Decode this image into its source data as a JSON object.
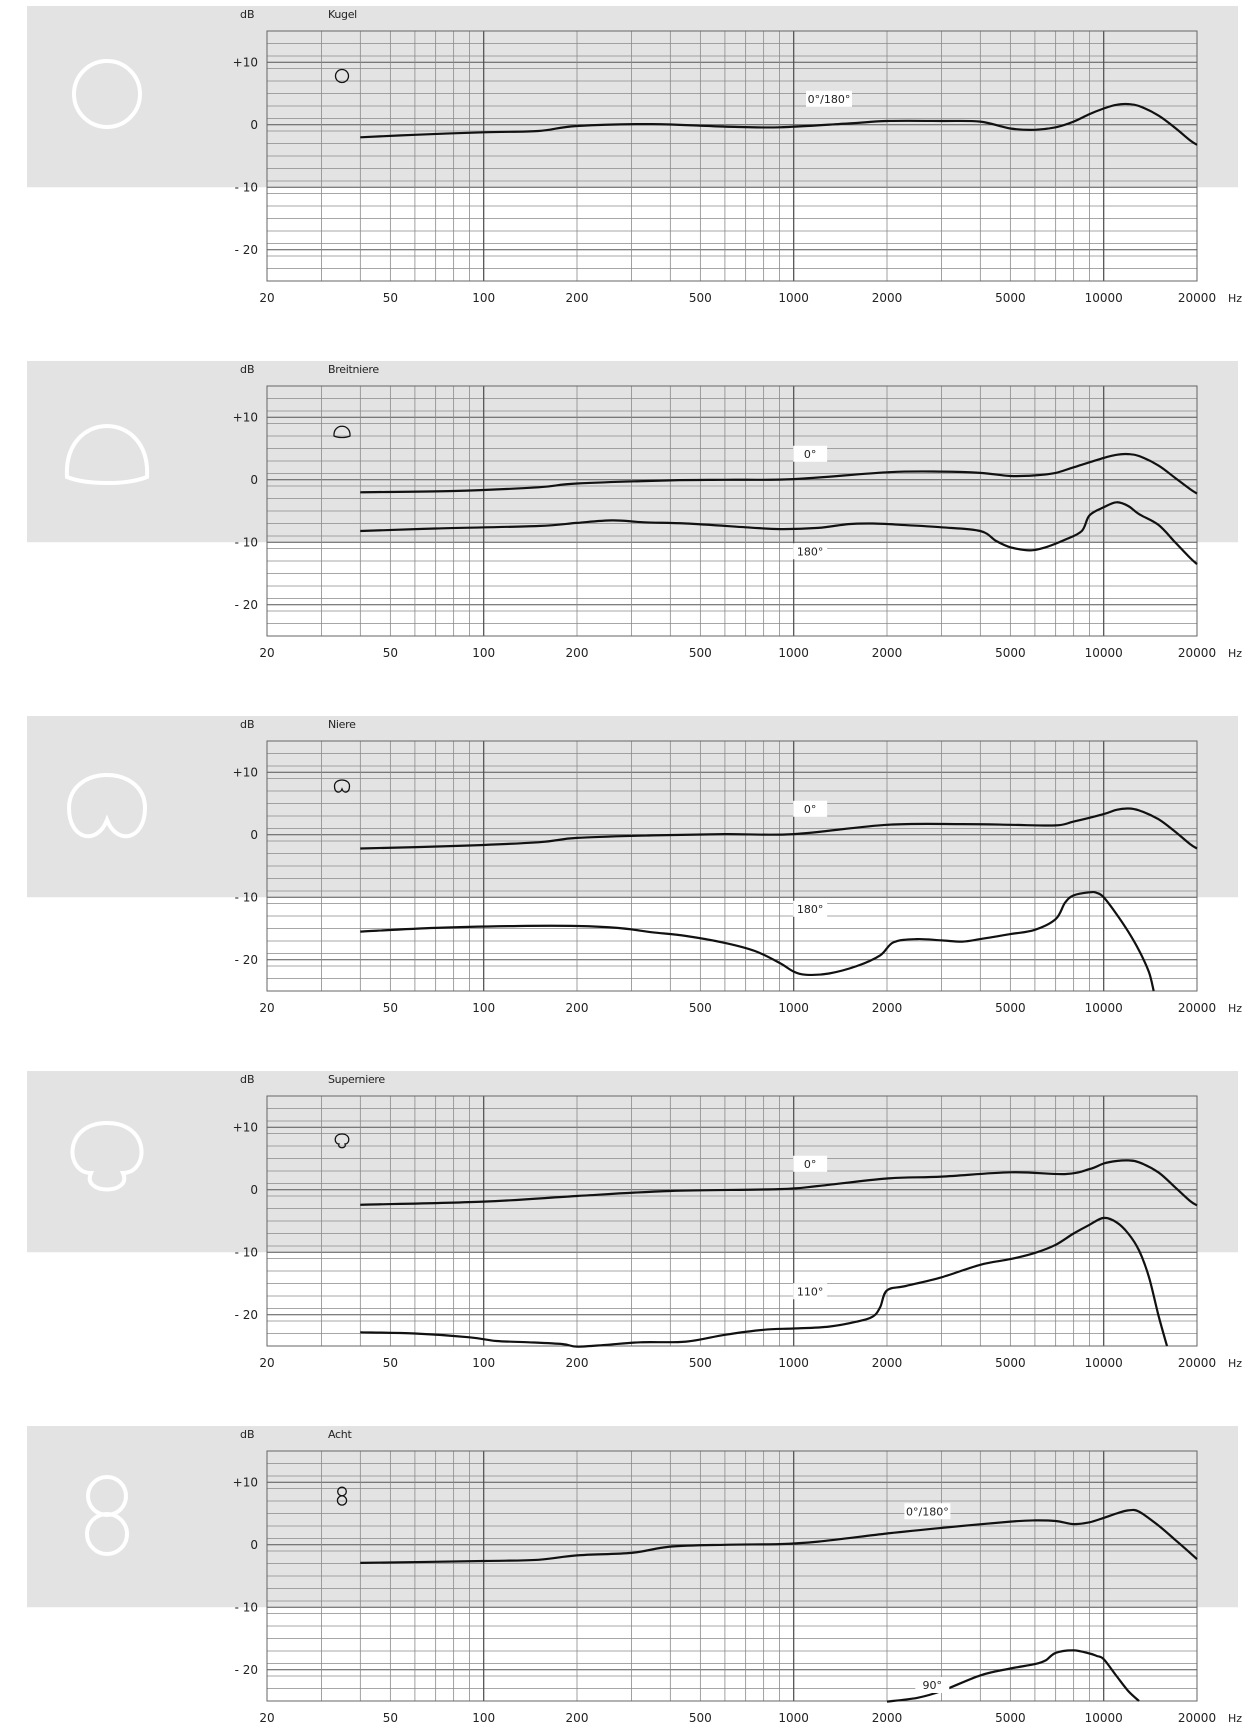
{
  "common": {
    "y_unit": "dB",
    "x_unit": "Hz",
    "y_tick_labels": [
      "+10",
      "0",
      "- 10",
      "- 20"
    ],
    "y_tick_values": [
      10,
      0,
      -10,
      -20
    ],
    "x_tick_labels": [
      "20",
      "50",
      "100",
      "200",
      "500",
      "1000",
      "2000",
      "5000",
      "10000",
      "20000"
    ],
    "x_tick_values": [
      20,
      50,
      100,
      200,
      500,
      1000,
      2000,
      5000,
      10000,
      20000
    ],
    "colors": {
      "band": "#e3e3e3",
      "grid": "#8a8a8a",
      "curve": "#111111",
      "symbol": "#ffffff"
    }
  },
  "chart_data": [
    {
      "type": "line",
      "title": "Kugel",
      "pattern": "omni-icon",
      "xlabel": "Hz",
      "ylabel": "dB",
      "x_scale": "log",
      "xlim": [
        20,
        20000
      ],
      "ylim": [
        -25,
        15
      ],
      "shaded_range_db": [
        -10,
        15
      ],
      "grid": true,
      "series": [
        {
          "name": "0°/180°",
          "label_pos": [
            1300,
            4
          ],
          "points": [
            [
              40,
              -2
            ],
            [
              60,
              -1.6
            ],
            [
              100,
              -1.2
            ],
            [
              150,
              -1
            ],
            [
              200,
              -0.2
            ],
            [
              350,
              0.1
            ],
            [
              600,
              -0.3
            ],
            [
              900,
              -0.4
            ],
            [
              1500,
              0.2
            ],
            [
              2000,
              0.6
            ],
            [
              3000,
              0.6
            ],
            [
              4000,
              0.5
            ],
            [
              5000,
              -0.6
            ],
            [
              6000,
              -0.8
            ],
            [
              7000,
              -0.4
            ],
            [
              8000,
              0.5
            ],
            [
              9000,
              1.7
            ],
            [
              10000,
              2.6
            ],
            [
              11000,
              3.2
            ],
            [
              12000,
              3.3
            ],
            [
              13000,
              3
            ],
            [
              15000,
              1.5
            ],
            [
              17000,
              -0.5
            ],
            [
              19000,
              -2.5
            ],
            [
              20000,
              -3.2
            ]
          ]
        }
      ]
    },
    {
      "type": "line",
      "title": "Breitniere",
      "pattern": "wide-cardioid-icon",
      "xlabel": "Hz",
      "ylabel": "dB",
      "x_scale": "log",
      "xlim": [
        20,
        20000
      ],
      "ylim": [
        -25,
        15
      ],
      "shaded_range_db": [
        -10,
        15
      ],
      "grid": true,
      "series": [
        {
          "name": "0°",
          "label_pos": [
            1130,
            4
          ],
          "points": [
            [
              40,
              -2
            ],
            [
              80,
              -1.8
            ],
            [
              150,
              -1.2
            ],
            [
              200,
              -0.6
            ],
            [
              400,
              -0.1
            ],
            [
              600,
              0
            ],
            [
              1000,
              0.1
            ],
            [
              2000,
              1.2
            ],
            [
              3000,
              1.3
            ],
            [
              4000,
              1.1
            ],
            [
              5000,
              0.6
            ],
            [
              6000,
              0.7
            ],
            [
              7000,
              1.1
            ],
            [
              8000,
              2
            ],
            [
              10000,
              3.5
            ],
            [
              11000,
              4
            ],
            [
              12000,
              4.1
            ],
            [
              13000,
              3.8
            ],
            [
              15000,
              2.3
            ],
            [
              17000,
              0.3
            ],
            [
              19000,
              -1.5
            ],
            [
              20000,
              -2.2
            ]
          ]
        },
        {
          "name": "180°",
          "label_pos": [
            1130,
            -11.6
          ],
          "points": [
            [
              40,
              -8.2
            ],
            [
              70,
              -7.8
            ],
            [
              150,
              -7.4
            ],
            [
              200,
              -6.9
            ],
            [
              260,
              -6.5
            ],
            [
              330,
              -6.8
            ],
            [
              450,
              -7
            ],
            [
              700,
              -7.6
            ],
            [
              900,
              -7.9
            ],
            [
              1200,
              -7.7
            ],
            [
              1500,
              -7.1
            ],
            [
              1800,
              -7
            ],
            [
              2200,
              -7.2
            ],
            [
              3000,
              -7.6
            ],
            [
              4000,
              -8.2
            ],
            [
              4500,
              -9.8
            ],
            [
              5000,
              -10.8
            ],
            [
              5800,
              -11.3
            ],
            [
              6500,
              -10.8
            ],
            [
              7500,
              -9.6
            ],
            [
              8500,
              -8.2
            ],
            [
              9000,
              -5.7
            ],
            [
              10000,
              -4.4
            ],
            [
              11000,
              -3.6
            ],
            [
              12000,
              -4.2
            ],
            [
              13000,
              -5.5
            ],
            [
              15000,
              -7.2
            ],
            [
              17000,
              -10
            ],
            [
              19000,
              -12.5
            ],
            [
              20000,
              -13.5
            ]
          ]
        }
      ]
    },
    {
      "type": "line",
      "title": "Niere",
      "pattern": "cardioid-icon",
      "xlabel": "Hz",
      "ylabel": "dB",
      "x_scale": "log",
      "xlim": [
        20,
        20000
      ],
      "ylim": [
        -25,
        15
      ],
      "shaded_range_db": [
        -10,
        15
      ],
      "grid": true,
      "series": [
        {
          "name": "0°",
          "label_pos": [
            1130,
            4
          ],
          "points": [
            [
              40,
              -2.2
            ],
            [
              80,
              -1.8
            ],
            [
              150,
              -1.2
            ],
            [
              200,
              -0.5
            ],
            [
              350,
              -0.1
            ],
            [
              600,
              0.1
            ],
            [
              1000,
              0.1
            ],
            [
              2000,
              1.6
            ],
            [
              3500,
              1.7
            ],
            [
              5000,
              1.6
            ],
            [
              7000,
              1.5
            ],
            [
              8000,
              2.1
            ],
            [
              10000,
              3.3
            ],
            [
              11000,
              4
            ],
            [
              12000,
              4.2
            ],
            [
              13000,
              3.9
            ],
            [
              15000,
              2.5
            ],
            [
              17000,
              0.5
            ],
            [
              19000,
              -1.5
            ],
            [
              20000,
              -2.2
            ]
          ]
        },
        {
          "name": "180°",
          "label_pos": [
            1130,
            -12
          ],
          "points": [
            [
              40,
              -15.5
            ],
            [
              70,
              -14.9
            ],
            [
              130,
              -14.6
            ],
            [
              200,
              -14.6
            ],
            [
              270,
              -14.9
            ],
            [
              350,
              -15.6
            ],
            [
              450,
              -16.2
            ],
            [
              600,
              -17.3
            ],
            [
              750,
              -18.6
            ],
            [
              900,
              -20.5
            ],
            [
              1000,
              -21.9
            ],
            [
              1100,
              -22.4
            ],
            [
              1300,
              -22.2
            ],
            [
              1600,
              -21
            ],
            [
              1900,
              -19.3
            ],
            [
              2100,
              -17.2
            ],
            [
              2500,
              -16.7
            ],
            [
              3000,
              -16.9
            ],
            [
              3500,
              -17.1
            ],
            [
              4000,
              -16.7
            ],
            [
              5000,
              -15.9
            ],
            [
              6000,
              -15.2
            ],
            [
              7000,
              -13.5
            ],
            [
              7500,
              -10.9
            ],
            [
              8000,
              -9.7
            ],
            [
              9000,
              -9.2
            ],
            [
              9500,
              -9.3
            ],
            [
              10000,
              -10
            ],
            [
              11000,
              -12.7
            ],
            [
              12000,
              -15.5
            ],
            [
              13000,
              -18.5
            ],
            [
              14000,
              -22
            ],
            [
              14500,
              -25
            ]
          ]
        }
      ]
    },
    {
      "type": "line",
      "title": "Superniere",
      "pattern": "supercardioid-icon",
      "xlabel": "Hz",
      "ylabel": "dB",
      "x_scale": "log",
      "xlim": [
        20,
        20000
      ],
      "ylim": [
        -25,
        15
      ],
      "shaded_range_db": [
        -10,
        15
      ],
      "grid": true,
      "series": [
        {
          "name": "0°",
          "label_pos": [
            1130,
            4
          ],
          "points": [
            [
              40,
              -2.4
            ],
            [
              100,
              -1.9
            ],
            [
              200,
              -1
            ],
            [
              400,
              -0.2
            ],
            [
              900,
              0.1
            ],
            [
              1200,
              0.6
            ],
            [
              2000,
              1.8
            ],
            [
              3000,
              2.1
            ],
            [
              5000,
              2.8
            ],
            [
              7500,
              2.5
            ],
            [
              9000,
              3.3
            ],
            [
              10000,
              4.2
            ],
            [
              11000,
              4.6
            ],
            [
              12000,
              4.7
            ],
            [
              13000,
              4.4
            ],
            [
              15000,
              2.8
            ],
            [
              17000,
              0.4
            ],
            [
              19000,
              -1.8
            ],
            [
              20000,
              -2.5
            ]
          ]
        },
        {
          "name": "110°",
          "label_pos": [
            1130,
            -16.4
          ],
          "points": [
            [
              40,
              -22.8
            ],
            [
              60,
              -23
            ],
            [
              90,
              -23.6
            ],
            [
              110,
              -24.2
            ],
            [
              140,
              -24.4
            ],
            [
              180,
              -24.7
            ],
            [
              200,
              -25.1
            ],
            [
              250,
              -24.8
            ],
            [
              320,
              -24.4
            ],
            [
              450,
              -24.3
            ],
            [
              600,
              -23.2
            ],
            [
              800,
              -22.4
            ],
            [
              1000,
              -22.2
            ],
            [
              1300,
              -21.9
            ],
            [
              1600,
              -21.1
            ],
            [
              1800,
              -20.3
            ],
            [
              1900,
              -18.8
            ],
            [
              2000,
              -16.1
            ],
            [
              2300,
              -15.4
            ],
            [
              3000,
              -14
            ],
            [
              4000,
              -12
            ],
            [
              5000,
              -11.1
            ],
            [
              6000,
              -10.1
            ],
            [
              7000,
              -8.8
            ],
            [
              8000,
              -7
            ],
            [
              9000,
              -5.6
            ],
            [
              10000,
              -4.5
            ],
            [
              11000,
              -5.2
            ],
            [
              12000,
              -7
            ],
            [
              13000,
              -9.7
            ],
            [
              14000,
              -14
            ],
            [
              15000,
              -20
            ],
            [
              16000,
              -25
            ]
          ]
        }
      ]
    },
    {
      "type": "line",
      "title": "Acht",
      "pattern": "figure-eight-icon",
      "xlabel": "Hz",
      "ylabel": "dB",
      "x_scale": "log",
      "xlim": [
        20,
        20000
      ],
      "ylim": [
        -25,
        15
      ],
      "shaded_range_db": [
        -10,
        15
      ],
      "grid": true,
      "series": [
        {
          "name": "0°/180°",
          "label_pos": [
            2700,
            5.2
          ],
          "points": [
            [
              40,
              -2.9
            ],
            [
              100,
              -2.6
            ],
            [
              150,
              -2.4
            ],
            [
              200,
              -1.7
            ],
            [
              300,
              -1.3
            ],
            [
              400,
              -0.3
            ],
            [
              600,
              0
            ],
            [
              900,
              0.1
            ],
            [
              1200,
              0.5
            ],
            [
              2000,
              1.8
            ],
            [
              3000,
              2.7
            ],
            [
              5000,
              3.7
            ],
            [
              6000,
              3.9
            ],
            [
              7000,
              3.8
            ],
            [
              8000,
              3.3
            ],
            [
              9000,
              3.6
            ],
            [
              10000,
              4.3
            ],
            [
              11000,
              5
            ],
            [
              12000,
              5.5
            ],
            [
              13000,
              5.3
            ],
            [
              15000,
              3.1
            ],
            [
              17000,
              0.8
            ],
            [
              19000,
              -1.3
            ],
            [
              20000,
              -2.3
            ]
          ]
        },
        {
          "name": "90°",
          "label_pos": [
            2800,
            -22.6
          ],
          "points": [
            [
              2000,
              -25.1
            ],
            [
              2500,
              -24.5
            ],
            [
              3000,
              -23.4
            ],
            [
              4000,
              -20.9
            ],
            [
              5000,
              -19.8
            ],
            [
              6000,
              -19.1
            ],
            [
              6500,
              -18.5
            ],
            [
              7000,
              -17.3
            ],
            [
              8000,
              -16.9
            ],
            [
              9000,
              -17.4
            ],
            [
              9500,
              -17.8
            ],
            [
              10000,
              -18.3
            ],
            [
              11000,
              -21
            ],
            [
              12000,
              -23.4
            ],
            [
              13000,
              -25
            ]
          ]
        }
      ]
    }
  ]
}
